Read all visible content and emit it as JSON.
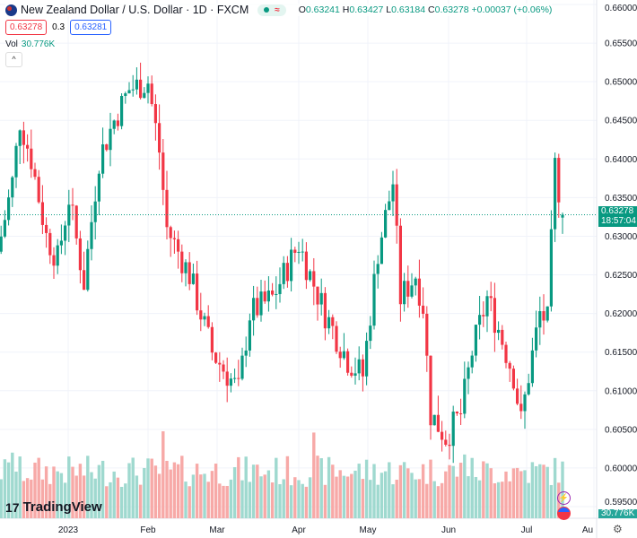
{
  "header": {
    "symbol": "New Zealand Dollar / U.S. Dollar · 1D · FXCM",
    "open_label": "O",
    "open": "0.63241",
    "high_label": "H",
    "high": "0.63427",
    "low_label": "L",
    "low": "0.63184",
    "close_label": "C",
    "close": "0.63278",
    "change": "+0.00037 (+0.06%)",
    "bid": "0.63278",
    "spread": "0.3",
    "ask": "0.63281",
    "collapse_icon": "^"
  },
  "volume": {
    "label": "Vol",
    "value": "30.776K"
  },
  "last_price": {
    "price": "0.63278",
    "countdown": "18:57:04"
  },
  "brand": "TradingView",
  "colors": {
    "up": "#089981",
    "down": "#f23645",
    "vol_up": "#9fd9cf",
    "vol_down": "#f7a9a7"
  },
  "chart_data": {
    "type": "candlestick",
    "ylim": [
      0.595,
      0.66
    ],
    "y_ticks": [
      "0.66000",
      "0.65500",
      "0.65000",
      "0.64500",
      "0.64000",
      "0.63500",
      "0.63000",
      "0.62500",
      "0.62000",
      "0.61500",
      "0.61000",
      "0.60500",
      "0.60000",
      "0.59500"
    ],
    "x_ticks": [
      "2023",
      "Feb",
      "Mar",
      "Apr",
      "May",
      "Jun",
      "Jul",
      "Au"
    ],
    "close_path_by_day": [
      [
        0,
        0.63
      ],
      [
        3,
        0.637
      ],
      [
        5,
        0.645
      ],
      [
        8,
        0.64
      ],
      [
        12,
        0.63
      ],
      [
        15,
        0.627
      ],
      [
        18,
        0.635
      ],
      [
        22,
        0.624
      ],
      [
        26,
        0.64
      ],
      [
        30,
        0.645
      ],
      [
        34,
        0.649
      ],
      [
        39,
        0.65
      ],
      [
        42,
        0.641
      ],
      [
        44,
        0.631
      ],
      [
        50,
        0.625
      ],
      [
        56,
        0.615
      ],
      [
        63,
        0.61
      ],
      [
        66,
        0.62
      ],
      [
        72,
        0.622
      ],
      [
        79,
        0.629
      ],
      [
        82,
        0.625
      ],
      [
        86,
        0.62
      ],
      [
        92,
        0.614
      ],
      [
        96,
        0.612
      ],
      [
        100,
        0.628
      ],
      [
        104,
        0.637
      ],
      [
        106,
        0.622
      ],
      [
        110,
        0.625
      ],
      [
        112,
        0.621
      ],
      [
        114,
        0.607
      ],
      [
        118,
        0.604
      ],
      [
        122,
        0.607
      ],
      [
        125,
        0.615
      ],
      [
        129,
        0.622
      ],
      [
        132,
        0.618
      ],
      [
        136,
        0.612
      ],
      [
        138,
        0.606
      ],
      [
        140,
        0.612
      ],
      [
        143,
        0.62
      ],
      [
        145,
        0.619
      ],
      [
        147,
        0.639
      ],
      [
        148,
        0.636
      ],
      [
        149,
        0.6328
      ]
    ]
  }
}
